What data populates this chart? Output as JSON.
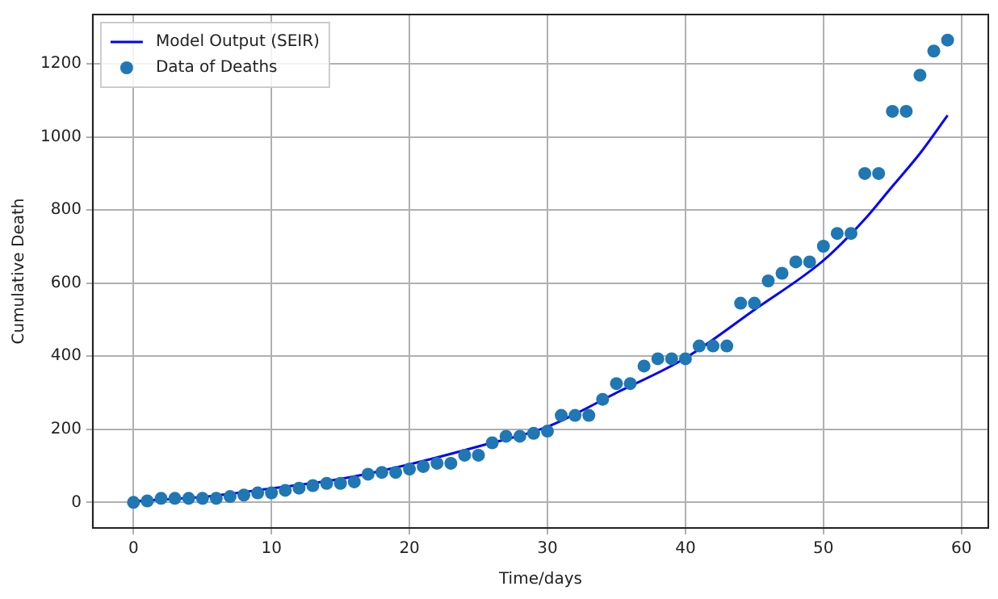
{
  "chart_data": {
    "type": "scatter",
    "xlabel": "Time/days",
    "ylabel": "Cumulative Death",
    "xlim": [
      -2.95,
      61.95
    ],
    "xticks": [
      0,
      10,
      20,
      30,
      40,
      50,
      60
    ],
    "ylim": [
      -70,
      1335
    ],
    "yticks": [
      0,
      200,
      400,
      600,
      800,
      1000,
      1200
    ],
    "grid": true,
    "legend": "top left",
    "marker": "circle",
    "series": [
      {
        "name": "Model Output (SEIR)",
        "type": "line",
        "color": "#0000ff",
        "marker": "none",
        "x": [
          0,
          5,
          10,
          15,
          20,
          25,
          30,
          35,
          40,
          45,
          50,
          53,
          55,
          57,
          59
        ],
        "values": [
          3,
          15,
          38,
          64,
          104,
          153,
          207,
          300,
          395,
          527,
          662,
          775,
          865,
          955,
          1059
        ]
      },
      {
        "name": "Data of Deaths",
        "type": "scatter",
        "color": "#1f77b4",
        "x": [
          0,
          1,
          2,
          3,
          4,
          5,
          6,
          7,
          8,
          9,
          10,
          11,
          12,
          13,
          14,
          15,
          16,
          17,
          18,
          19,
          20,
          21,
          22,
          23,
          24,
          25,
          26,
          27,
          28,
          29,
          30,
          31,
          32,
          33,
          34,
          35,
          36,
          37,
          38,
          39,
          40,
          41,
          42,
          43,
          44,
          45,
          46,
          47,
          48,
          49,
          50,
          51,
          52,
          53,
          54,
          55,
          56,
          57,
          58,
          59
        ],
        "values": [
          0,
          4,
          11,
          11,
          11,
          11,
          11,
          16,
          20,
          26,
          26,
          33,
          39,
          46,
          52,
          52,
          56,
          77,
          82,
          82,
          91,
          98,
          107,
          107,
          129,
          129,
          163,
          181,
          181,
          189,
          195,
          238,
          238,
          238,
          282,
          325,
          325,
          373,
          393,
          393,
          393,
          428,
          428,
          428,
          545,
          545,
          606,
          627,
          658,
          658,
          701,
          736,
          736,
          900,
          900,
          1070,
          1070,
          1169,
          1235,
          1265
        ]
      }
    ]
  }
}
